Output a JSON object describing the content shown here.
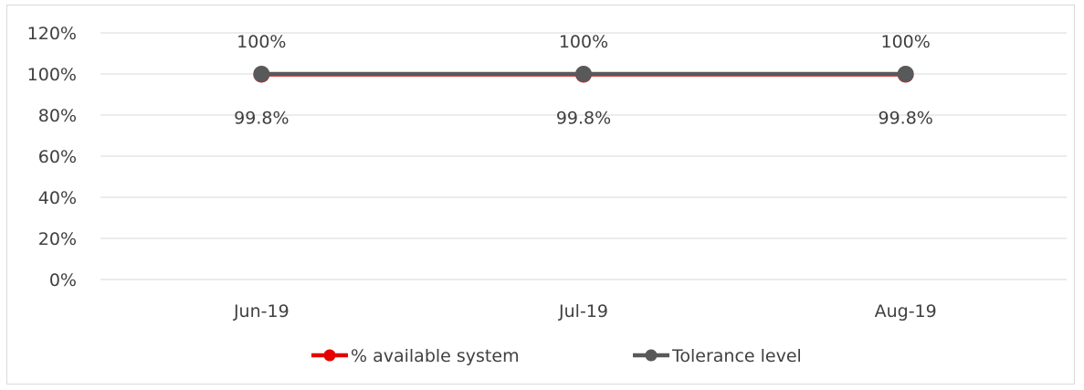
{
  "chart_data": {
    "type": "line",
    "categories": [
      "Jun-19",
      "Jul-19",
      "Aug-19"
    ],
    "series": [
      {
        "name": "% available system",
        "values": [
          99.8,
          99.8,
          99.8
        ],
        "data_labels": [
          "99.8%",
          "99.8%",
          "99.8%"
        ],
        "color": "#e60000"
      },
      {
        "name": "Tolerance level",
        "values": [
          100,
          100,
          100
        ],
        "data_labels": [
          "100%",
          "100%",
          "100%"
        ],
        "color": "#595959"
      }
    ],
    "y_ticks": [
      "0%",
      "20%",
      "40%",
      "60%",
      "80%",
      "100%",
      "120%"
    ],
    "ylim": [
      0,
      120
    ],
    "grid": true,
    "legend_position": "bottom"
  }
}
